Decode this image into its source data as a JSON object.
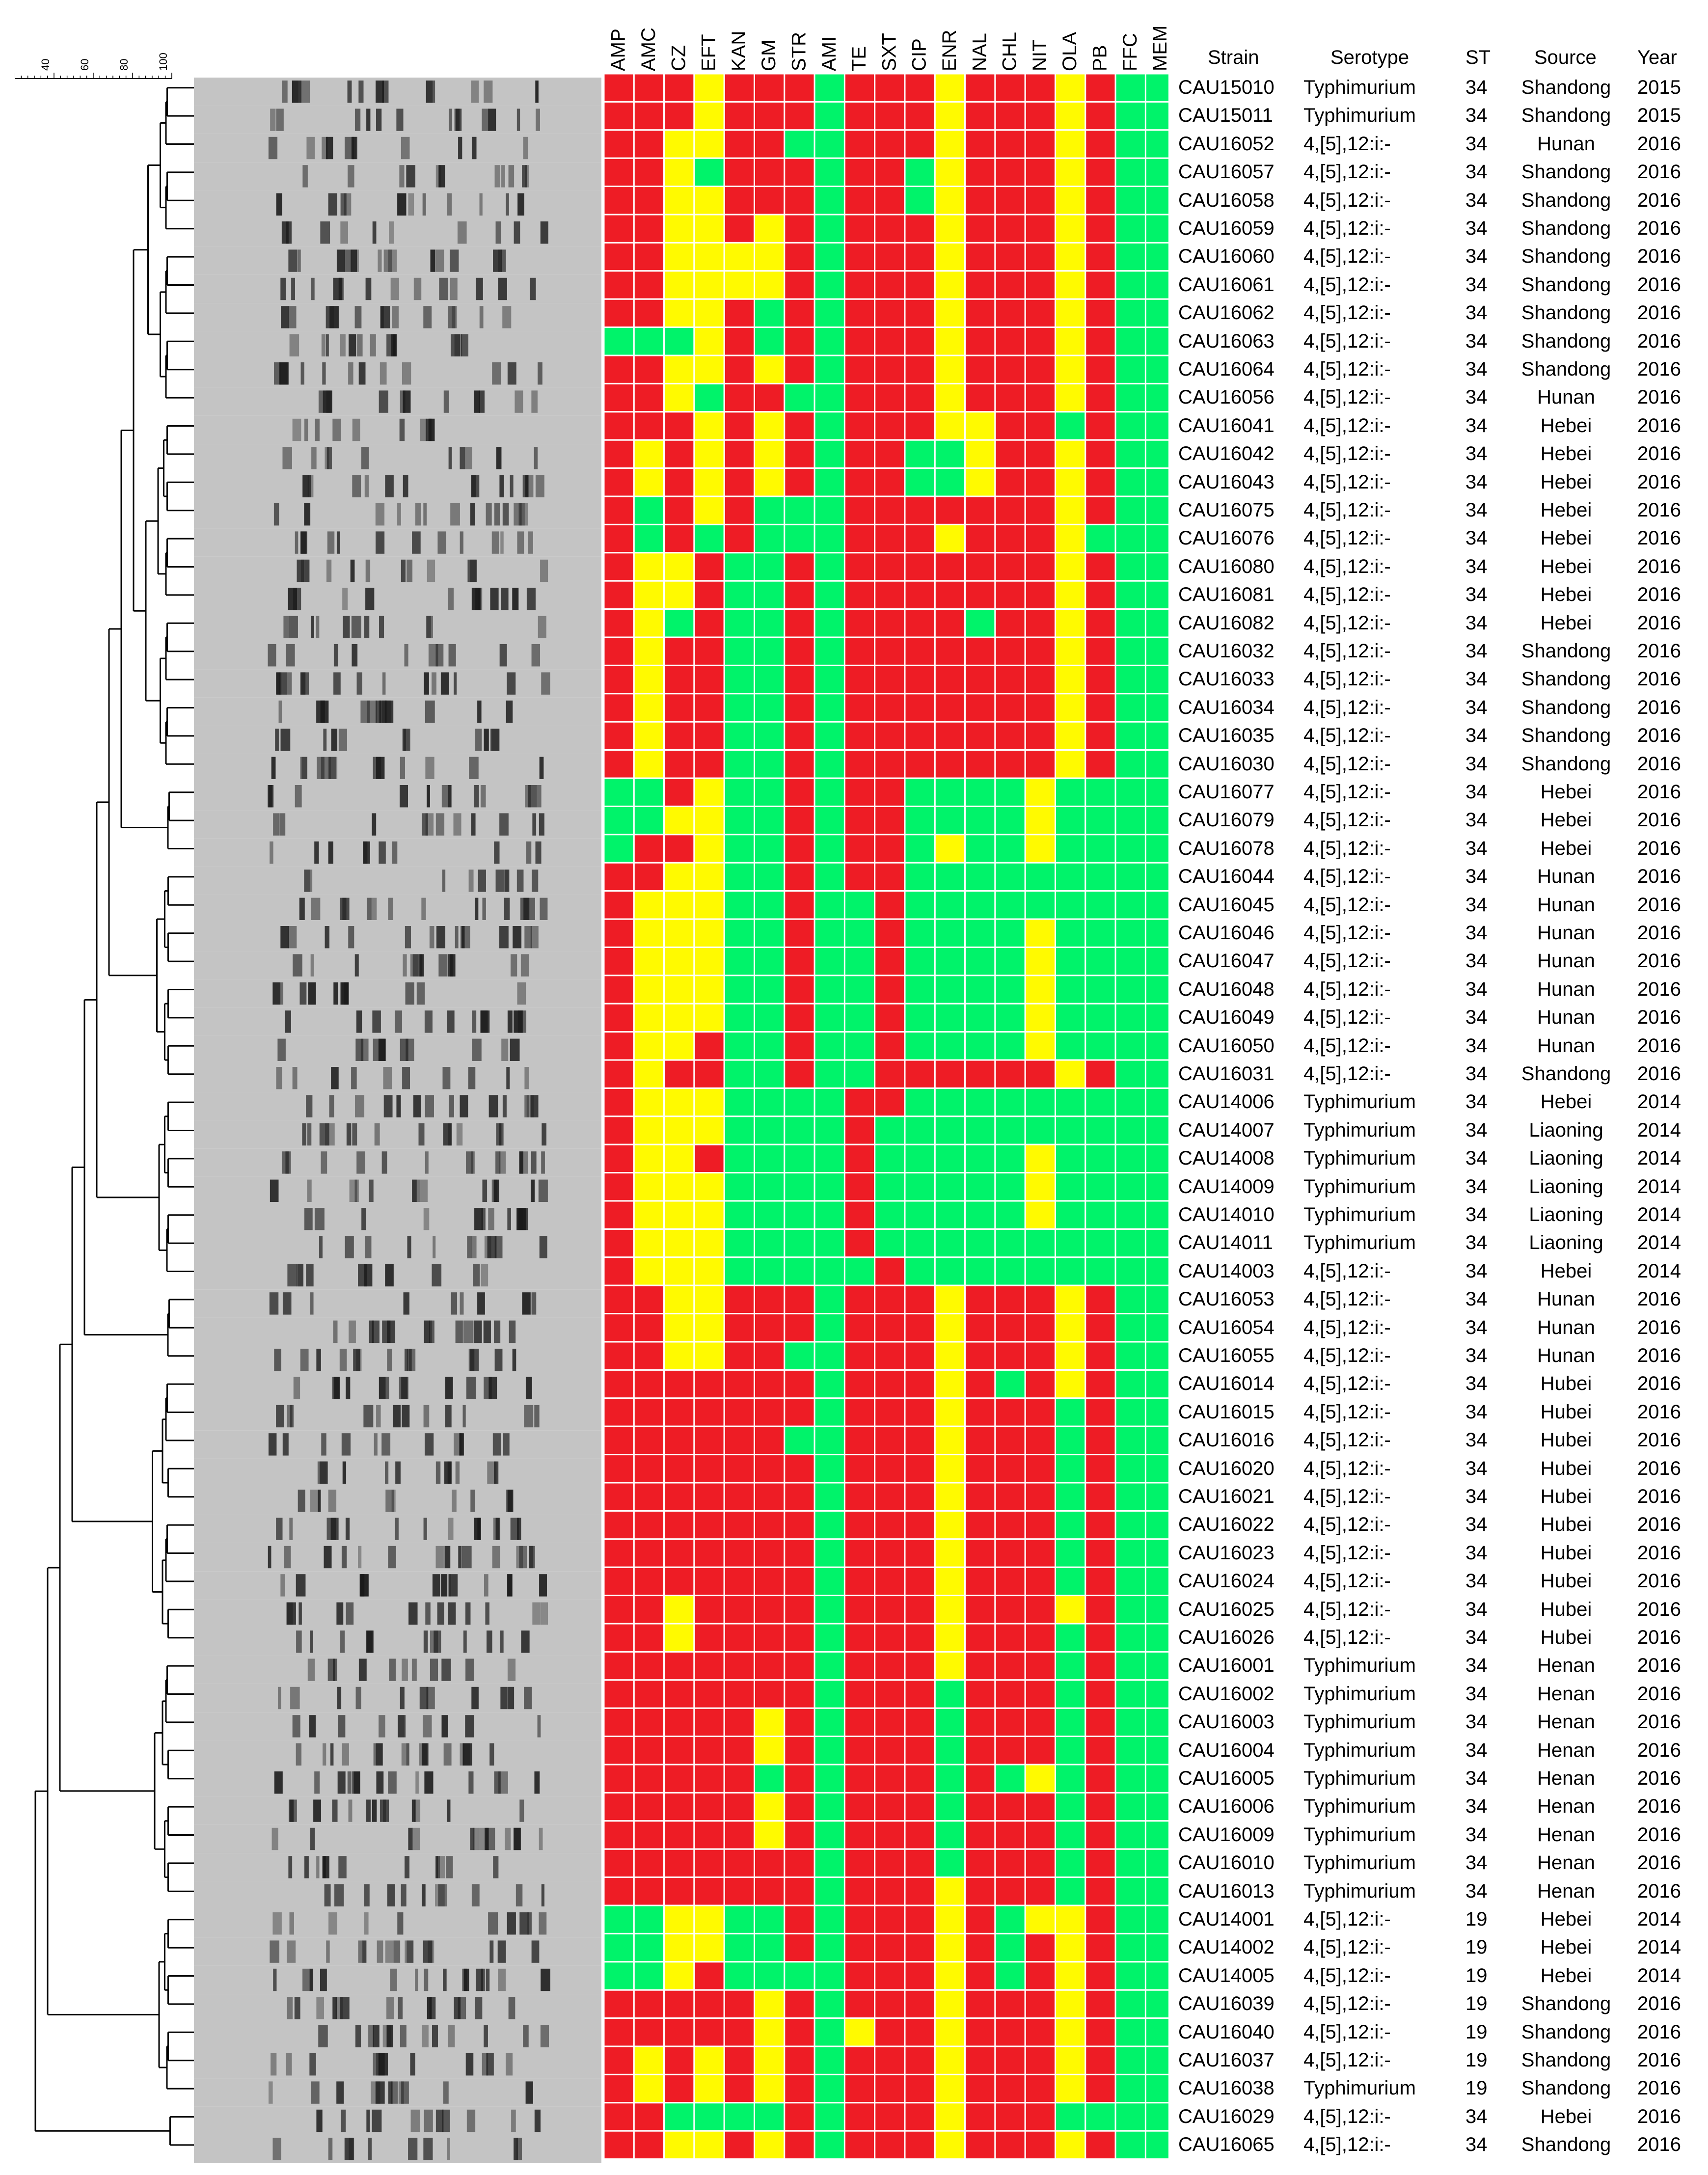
{
  "scale_ticks": [
    "40",
    "60",
    "80",
    "100"
  ],
  "antibiotics": [
    "AMP",
    "AMC",
    "CZ",
    "EFT",
    "KAN",
    "GM",
    "STR",
    "AMI",
    "TE",
    "SXT",
    "CIP",
    "ENR",
    "NAL",
    "CHL",
    "NIT",
    "OLA",
    "PB",
    "FFC",
    "MEM"
  ],
  "colors": {
    "R": "#ee1c25",
    "I": "#fffa00",
    "S": "#00f36a"
  },
  "table_headers": {
    "strain": "Strain",
    "serotype": "Serotype",
    "st": "ST",
    "source": "Source",
    "year": "Year"
  },
  "rows": [
    {
      "strain": "CAU15010",
      "serotype": "Typhimurium",
      "st": "34",
      "source": "Shandong",
      "year": "2015",
      "profile": "RRRIRRRSRRRIRRRIRSS"
    },
    {
      "strain": "CAU15011",
      "serotype": "Typhimurium",
      "st": "34",
      "source": "Shandong",
      "year": "2015",
      "profile": "RRRIRRRSRRRIRRRIRSS"
    },
    {
      "strain": "CAU16052",
      "serotype": "4,[5],12:i:-",
      "st": "34",
      "source": "Hunan",
      "year": "2016",
      "profile": "RRIIRRSSRRRIRRRIRSS"
    },
    {
      "strain": "CAU16057",
      "serotype": "4,[5],12:i:-",
      "st": "34",
      "source": "Shandong",
      "year": "2016",
      "profile": "RRISRRRSRRSIRRRIRSS"
    },
    {
      "strain": "CAU16058",
      "serotype": "4,[5],12:i:-",
      "st": "34",
      "source": "Shandong",
      "year": "2016",
      "profile": "RRIIRRRSRRSIRRRIRSS"
    },
    {
      "strain": "CAU16059",
      "serotype": "4,[5],12:i:-",
      "st": "34",
      "source": "Shandong",
      "year": "2016",
      "profile": "RRIIRIRSRRRIRRRIRSS"
    },
    {
      "strain": "CAU16060",
      "serotype": "4,[5],12:i:-",
      "st": "34",
      "source": "Shandong",
      "year": "2016",
      "profile": "RRIIIIRSRRRIRRRIRSS"
    },
    {
      "strain": "CAU16061",
      "serotype": "4,[5],12:i:-",
      "st": "34",
      "source": "Shandong",
      "year": "2016",
      "profile": "RRIIIIRSRRRIRRRIRSS"
    },
    {
      "strain": "CAU16062",
      "serotype": "4,[5],12:i:-",
      "st": "34",
      "source": "Shandong",
      "year": "2016",
      "profile": "RRIIRSRSRRRIRRRIRSS"
    },
    {
      "strain": "CAU16063",
      "serotype": "4,[5],12:i:-",
      "st": "34",
      "source": "Shandong",
      "year": "2016",
      "profile": "SSSIRSRSRRRIRRRIRSS"
    },
    {
      "strain": "CAU16064",
      "serotype": "4,[5],12:i:-",
      "st": "34",
      "source": "Shandong",
      "year": "2016",
      "profile": "RRIIRIRSRRRIRRRIRSS"
    },
    {
      "strain": "CAU16056",
      "serotype": "4,[5],12:i:-",
      "st": "34",
      "source": "Hunan",
      "year": "2016",
      "profile": "RRISRRSSRRRIRRRIRSS"
    },
    {
      "strain": "CAU16041",
      "serotype": "4,[5],12:i:-",
      "st": "34",
      "source": "Hebei",
      "year": "2016",
      "profile": "RRRIRIRSRRRIIRRSRSS"
    },
    {
      "strain": "CAU16042",
      "serotype": "4,[5],12:i:-",
      "st": "34",
      "source": "Hebei",
      "year": "2016",
      "profile": "RIRIRIRSRRSSIRRIRSS"
    },
    {
      "strain": "CAU16043",
      "serotype": "4,[5],12:i:-",
      "st": "34",
      "source": "Hebei",
      "year": "2016",
      "profile": "RIRIRIRSRRSSIRRIRSS"
    },
    {
      "strain": "CAU16075",
      "serotype": "4,[5],12:i:-",
      "st": "34",
      "source": "Hebei",
      "year": "2016",
      "profile": "RSRIRSSSRRRRRRRIRSS"
    },
    {
      "strain": "CAU16076",
      "serotype": "4,[5],12:i:-",
      "st": "34",
      "source": "Hebei",
      "year": "2016",
      "profile": "RSRSRSSSRRRIRRRISSS"
    },
    {
      "strain": "CAU16080",
      "serotype": "4,[5],12:i:-",
      "st": "34",
      "source": "Hebei",
      "year": "2016",
      "profile": "RIIRSSRSRRRRRRRIRSS"
    },
    {
      "strain": "CAU16081",
      "serotype": "4,[5],12:i:-",
      "st": "34",
      "source": "Hebei",
      "year": "2016",
      "profile": "RIIRSSRSRRRRRRRIRSS"
    },
    {
      "strain": "CAU16082",
      "serotype": "4,[5],12:i:-",
      "st": "34",
      "source": "Hebei",
      "year": "2016",
      "profile": "RISRSSRSRRRRSRRIRSS"
    },
    {
      "strain": "CAU16032",
      "serotype": "4,[5],12:i:-",
      "st": "34",
      "source": "Shandong",
      "year": "2016",
      "profile": "RIRRSSRSRRRRRRRIRSS"
    },
    {
      "strain": "CAU16033",
      "serotype": "4,[5],12:i:-",
      "st": "34",
      "source": "Shandong",
      "year": "2016",
      "profile": "RIRRSSRSRRRRRRRIRSS"
    },
    {
      "strain": "CAU16034",
      "serotype": "4,[5],12:i:-",
      "st": "34",
      "source": "Shandong",
      "year": "2016",
      "profile": "RIRRSSRSRRRRRRRIRSS"
    },
    {
      "strain": "CAU16035",
      "serotype": "4,[5],12:i:-",
      "st": "34",
      "source": "Shandong",
      "year": "2016",
      "profile": "RIRRSSRSRRRRRRRIRSS"
    },
    {
      "strain": "CAU16030",
      "serotype": "4,[5],12:i:-",
      "st": "34",
      "source": "Shandong",
      "year": "2016",
      "profile": "RIRRSSRSRRRRRRRIRSS"
    },
    {
      "strain": "CAU16077",
      "serotype": "4,[5],12:i:-",
      "st": "34",
      "source": "Hebei",
      "year": "2016",
      "profile": "SSRISSRSRRSSSSISSSS"
    },
    {
      "strain": "CAU16079",
      "serotype": "4,[5],12:i:-",
      "st": "34",
      "source": "Hebei",
      "year": "2016",
      "profile": "SSIISSRSRRSSSSISSSS"
    },
    {
      "strain": "CAU16078",
      "serotype": "4,[5],12:i:-",
      "st": "34",
      "source": "Hebei",
      "year": "2016",
      "profile": "SRRISSRSRRSISSISSSS"
    },
    {
      "strain": "CAU16044",
      "serotype": "4,[5],12:i:-",
      "st": "34",
      "source": "Hunan",
      "year": "2016",
      "profile": "RRIISSRSRRSSSSSSSSS"
    },
    {
      "strain": "CAU16045",
      "serotype": "4,[5],12:i:-",
      "st": "34",
      "source": "Hunan",
      "year": "2016",
      "profile": "RIIISSRSSRSSSSSSSSS"
    },
    {
      "strain": "CAU16046",
      "serotype": "4,[5],12:i:-",
      "st": "34",
      "source": "Hunan",
      "year": "2016",
      "profile": "RIIISSRSSRSSSSISSSS"
    },
    {
      "strain": "CAU16047",
      "serotype": "4,[5],12:i:-",
      "st": "34",
      "source": "Hunan",
      "year": "2016",
      "profile": "RIIISSRSSRSSSSISSSS"
    },
    {
      "strain": "CAU16048",
      "serotype": "4,[5],12:i:-",
      "st": "34",
      "source": "Hunan",
      "year": "2016",
      "profile": "RIIISSRSSRSSSSISSSS"
    },
    {
      "strain": "CAU16049",
      "serotype": "4,[5],12:i:-",
      "st": "34",
      "source": "Hunan",
      "year": "2016",
      "profile": "RIIISSRSSRSSSSISSSS"
    },
    {
      "strain": "CAU16050",
      "serotype": "4,[5],12:i:-",
      "st": "34",
      "source": "Hunan",
      "year": "2016",
      "profile": "RIIRSSRSSRSSSSISSSS"
    },
    {
      "strain": "CAU16031",
      "serotype": "4,[5],12:i:-",
      "st": "34",
      "source": "Shandong",
      "year": "2016",
      "profile": "RIRRSSRSSRRRRRRIRSS"
    },
    {
      "strain": "CAU14006",
      "serotype": "Typhimurium",
      "st": "34",
      "source": "Hebei",
      "year": "2014",
      "profile": "RIIISSSSRRSSSSSSSSS"
    },
    {
      "strain": "CAU14007",
      "serotype": "Typhimurium",
      "st": "34",
      "source": "Liaoning",
      "year": "2014",
      "profile": "RIIISSSSRSSSSSSSSSS"
    },
    {
      "strain": "CAU14008",
      "serotype": "Typhimurium",
      "st": "34",
      "source": "Liaoning",
      "year": "2014",
      "profile": "RIIRSSSSRSSSSSISSSS"
    },
    {
      "strain": "CAU14009",
      "serotype": "Typhimurium",
      "st": "34",
      "source": "Liaoning",
      "year": "2014",
      "profile": "RIIISSSSRSSSSSISSSS"
    },
    {
      "strain": "CAU14010",
      "serotype": "Typhimurium",
      "st": "34",
      "source": "Liaoning",
      "year": "2014",
      "profile": "RIIISSSSRSSSSSISSSS"
    },
    {
      "strain": "CAU14011",
      "serotype": "Typhimurium",
      "st": "34",
      "source": "Liaoning",
      "year": "2014",
      "profile": "RIIISSSSRSSSSSSSSSS"
    },
    {
      "strain": "CAU14003",
      "serotype": "4,[5],12:i:-",
      "st": "34",
      "source": "Hebei",
      "year": "2014",
      "profile": "RIIISSSSSRSSSSSSSSS"
    },
    {
      "strain": "CAU16053",
      "serotype": "4,[5],12:i:-",
      "st": "34",
      "source": "Hunan",
      "year": "2016",
      "profile": "RRIIRRRSRRRIRRRIRSS"
    },
    {
      "strain": "CAU16054",
      "serotype": "4,[5],12:i:-",
      "st": "34",
      "source": "Hunan",
      "year": "2016",
      "profile": "RRIIRRRSRRRIRRRIRSS"
    },
    {
      "strain": "CAU16055",
      "serotype": "4,[5],12:i:-",
      "st": "34",
      "source": "Hunan",
      "year": "2016",
      "profile": "RRIIRRSSRRRIRRRIRSS"
    },
    {
      "strain": "CAU16014",
      "serotype": "4,[5],12:i:-",
      "st": "34",
      "source": "Hubei",
      "year": "2016",
      "profile": "RRRRRRRSRRRIRSRIRSS"
    },
    {
      "strain": "CAU16015",
      "serotype": "4,[5],12:i:-",
      "st": "34",
      "source": "Hubei",
      "year": "2016",
      "profile": "RRRRRRRSRRRIRRRSRSS"
    },
    {
      "strain": "CAU16016",
      "serotype": "4,[5],12:i:-",
      "st": "34",
      "source": "Hubei",
      "year": "2016",
      "profile": "RRRRRRSSRRRIRRRSRSS"
    },
    {
      "strain": "CAU16020",
      "serotype": "4,[5],12:i:-",
      "st": "34",
      "source": "Hubei",
      "year": "2016",
      "profile": "RRRRRRRSRRRIRRRSRSS"
    },
    {
      "strain": "CAU16021",
      "serotype": "4,[5],12:i:-",
      "st": "34",
      "source": "Hubei",
      "year": "2016",
      "profile": "RRRRRRRSRRRIRRRSRSS"
    },
    {
      "strain": "CAU16022",
      "serotype": "4,[5],12:i:-",
      "st": "34",
      "source": "Hubei",
      "year": "2016",
      "profile": "RRRRRRRSRRRIRRRSRSS"
    },
    {
      "strain": "CAU16023",
      "serotype": "4,[5],12:i:-",
      "st": "34",
      "source": "Hubei",
      "year": "2016",
      "profile": "RRRRRRRSRRRIRRRSRSS"
    },
    {
      "strain": "CAU16024",
      "serotype": "4,[5],12:i:-",
      "st": "34",
      "source": "Hubei",
      "year": "2016",
      "profile": "RRRRRRRSRRRIRRRSRSS"
    },
    {
      "strain": "CAU16025",
      "serotype": "4,[5],12:i:-",
      "st": "34",
      "source": "Hubei",
      "year": "2016",
      "profile": "RRIRRRRSRRRIRRRIRSS"
    },
    {
      "strain": "CAU16026",
      "serotype": "4,[5],12:i:-",
      "st": "34",
      "source": "Hubei",
      "year": "2016",
      "profile": "RRIRRRRSRRRIRRRSRSS"
    },
    {
      "strain": "CAU16001",
      "serotype": "Typhimurium",
      "st": "34",
      "source": "Henan",
      "year": "2016",
      "profile": "RRRRRRRSRRRIRRRSRSS"
    },
    {
      "strain": "CAU16002",
      "serotype": "Typhimurium",
      "st": "34",
      "source": "Henan",
      "year": "2016",
      "profile": "RRRRRRRSRRRSRRRSRSS"
    },
    {
      "strain": "CAU16003",
      "serotype": "Typhimurium",
      "st": "34",
      "source": "Henan",
      "year": "2016",
      "profile": "RRRRRIRSRRRSRRRSRSS"
    },
    {
      "strain": "CAU16004",
      "serotype": "Typhimurium",
      "st": "34",
      "source": "Henan",
      "year": "2016",
      "profile": "RRRRRIRSRRRSRRRSRSS"
    },
    {
      "strain": "CAU16005",
      "serotype": "Typhimurium",
      "st": "34",
      "source": "Henan",
      "year": "2016",
      "profile": "RRRRRSRSRRRSRSISRSS"
    },
    {
      "strain": "CAU16006",
      "serotype": "Typhimurium",
      "st": "34",
      "source": "Henan",
      "year": "2016",
      "profile": "RRRRRIRSRRRSRRRSRSS"
    },
    {
      "strain": "CAU16009",
      "serotype": "Typhimurium",
      "st": "34",
      "source": "Henan",
      "year": "2016",
      "profile": "RRRRRIRSRRRSRRRSRSS"
    },
    {
      "strain": "CAU16010",
      "serotype": "Typhimurium",
      "st": "34",
      "source": "Henan",
      "year": "2016",
      "profile": "RRRRRRRSRRRSRRRSRSS"
    },
    {
      "strain": "CAU16013",
      "serotype": "Typhimurium",
      "st": "34",
      "source": "Henan",
      "year": "2016",
      "profile": "RRRRRRRSRRRIRRRSRSS"
    },
    {
      "strain": "CAU14001",
      "serotype": "4,[5],12:i:-",
      "st": "19",
      "source": "Hebei",
      "year": "2014",
      "profile": "SSIISSRSRRRIRSIIRSS"
    },
    {
      "strain": "CAU14002",
      "serotype": "4,[5],12:i:-",
      "st": "19",
      "source": "Hebei",
      "year": "2014",
      "profile": "SSIISSRSRRRIRSRIRSS"
    },
    {
      "strain": "CAU14005",
      "serotype": "4,[5],12:i:-",
      "st": "19",
      "source": "Hebei",
      "year": "2014",
      "profile": "SSIRSSSSRRRIRSRIRSS"
    },
    {
      "strain": "CAU16039",
      "serotype": "4,[5],12:i:-",
      "st": "19",
      "source": "Shandong",
      "year": "2016",
      "profile": "RRRRRIRSRRRIRRRIRSS"
    },
    {
      "strain": "CAU16040",
      "serotype": "4,[5],12:i:-",
      "st": "19",
      "source": "Shandong",
      "year": "2016",
      "profile": "RRRRRIRSIRRIRRRIRSS"
    },
    {
      "strain": "CAU16037",
      "serotype": "4,[5],12:i:-",
      "st": "19",
      "source": "Shandong",
      "year": "2016",
      "profile": "RIRIRIRSRRRIRRRIRSS"
    },
    {
      "strain": "CAU16038",
      "serotype": "Typhimurium",
      "st": "19",
      "source": "Shandong",
      "year": "2016",
      "profile": "RIRIRIRSRRRIRRRIRSS"
    },
    {
      "strain": "CAU16029",
      "serotype": "4,[5],12:i:-",
      "st": "34",
      "source": "Hebei",
      "year": "2016",
      "profile": "RRSSSSRSRRRIRRRSSSS"
    },
    {
      "strain": "CAU16065",
      "serotype": "4,[5],12:i:-",
      "st": "34",
      "source": "Shandong",
      "year": "2016",
      "profile": "RRIIRIRSRRRIRRRIRSS"
    }
  ]
}
